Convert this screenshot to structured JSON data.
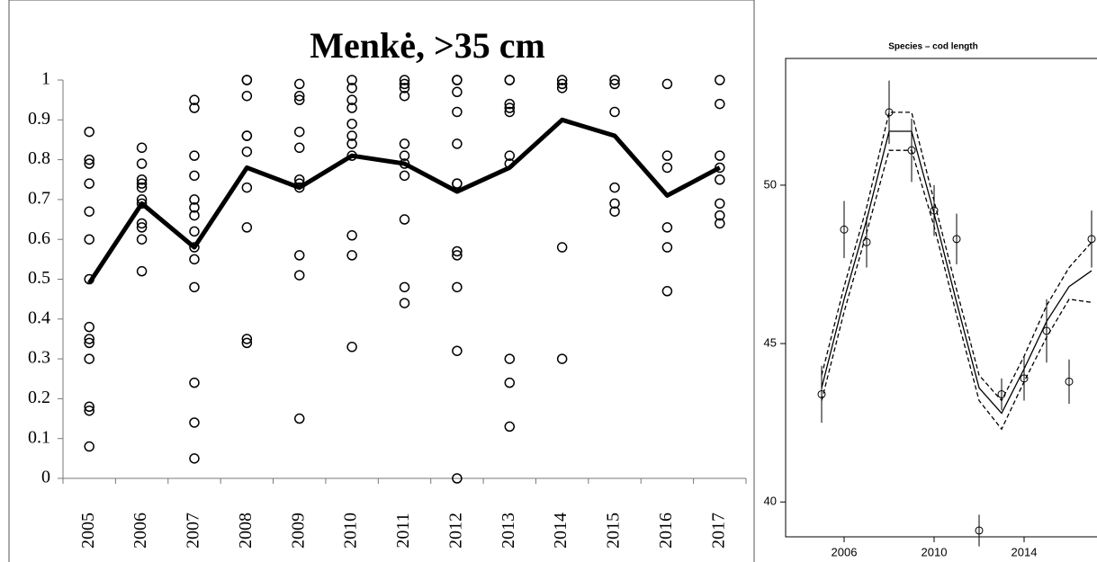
{
  "chart_data": [
    {
      "type": "strip",
      "title": "Menkė, >35 cm",
      "categories": [
        "2005",
        "2006",
        "2007",
        "2008",
        "2009",
        "2010",
        "2011",
        "2012",
        "2013",
        "2014",
        "2015",
        "2016",
        "2017"
      ],
      "points": [
        [
          0.87,
          0.8,
          0.79,
          0.74,
          0.67,
          0.6,
          0.5,
          0.38,
          0.35,
          0.34,
          0.3,
          0.18,
          0.17,
          0.08
        ],
        [
          0.83,
          0.79,
          0.75,
          0.74,
          0.73,
          0.7,
          0.69,
          0.64,
          0.63,
          0.6,
          0.52
        ],
        [
          0.95,
          0.93,
          0.81,
          0.76,
          0.7,
          0.68,
          0.66,
          0.62,
          0.58,
          0.55,
          0.48,
          0.24,
          0.14,
          0.05
        ],
        [
          1.0,
          1.0,
          0.96,
          0.86,
          0.86,
          0.82,
          0.73,
          0.63,
          0.35,
          0.34
        ],
        [
          0.99,
          0.96,
          0.95,
          0.87,
          0.83,
          0.75,
          0.74,
          0.73,
          0.56,
          0.51,
          0.15
        ],
        [
          1.0,
          0.98,
          0.95,
          0.93,
          0.89,
          0.86,
          0.84,
          0.81,
          0.61,
          0.56,
          0.33
        ],
        [
          1.0,
          0.99,
          0.98,
          0.96,
          0.84,
          0.81,
          0.79,
          0.76,
          0.65,
          0.48,
          0.44
        ],
        [
          1.0,
          1.0,
          0.97,
          0.92,
          0.84,
          0.74,
          0.74,
          0.57,
          0.56,
          0.48,
          0.32,
          0.0
        ],
        [
          1.0,
          1.0,
          0.94,
          0.93,
          0.92,
          0.81,
          0.79,
          0.3,
          0.24,
          0.13
        ],
        [
          1.0,
          0.99,
          0.98,
          0.58,
          0.3
        ],
        [
          1.0,
          0.99,
          0.92,
          0.73,
          0.69,
          0.67
        ],
        [
          0.99,
          0.81,
          0.78,
          0.63,
          0.58,
          0.47
        ],
        [
          1.0,
          0.94,
          0.81,
          0.78,
          0.75,
          0.69,
          0.66,
          0.64
        ]
      ],
      "line": [
        0.49,
        0.69,
        0.58,
        0.78,
        0.73,
        0.81,
        0.79,
        0.72,
        0.78,
        0.9,
        0.86,
        0.71,
        0.78
      ],
      "color": "#000000",
      "ylim": [
        0,
        1
      ],
      "yticks": [
        0,
        0.1,
        0.2,
        0.3,
        0.4,
        0.5,
        0.6,
        0.7,
        0.8,
        0.9,
        1
      ]
    },
    {
      "type": "errorbar",
      "title": "Species – cod length",
      "x": [
        2005,
        2006,
        2007,
        2008,
        2009,
        2010,
        2011,
        2012,
        2013,
        2014,
        2015,
        2016,
        2017
      ],
      "values": [
        43.4,
        48.6,
        48.2,
        52.3,
        51.1,
        49.2,
        48.3,
        39.1,
        43.4,
        43.9,
        45.4,
        43.8,
        48.3
      ],
      "errors": [
        0.9,
        0.9,
        0.8,
        1.0,
        1.0,
        0.8,
        0.8,
        0.5,
        0.5,
        0.7,
        1.0,
        0.7,
        0.9
      ],
      "series": [
        {
          "dash": false,
          "values": [
            43.6,
            46.4,
            48.9,
            51.7,
            51.7,
            49.1,
            46.3,
            43.6,
            42.8,
            44.2,
            45.7,
            46.8,
            47.3
          ]
        },
        {
          "dash": true,
          "values": [
            44.0,
            46.8,
            49.3,
            52.3,
            52.3,
            49.5,
            46.7,
            44.0,
            43.2,
            44.6,
            46.2,
            47.4,
            48.2
          ]
        },
        {
          "dash": true,
          "values": [
            43.2,
            46.0,
            48.5,
            51.1,
            51.1,
            48.7,
            45.9,
            43.2,
            42.3,
            43.8,
            45.2,
            46.4,
            46.3
          ]
        }
      ],
      "color": "#000000",
      "xlim": [
        2003.4,
        2018.6
      ],
      "xticks": [
        2006,
        2010,
        2014
      ],
      "ylim": [
        38.9,
        54
      ],
      "yticks": [
        40,
        45,
        50
      ]
    }
  ]
}
